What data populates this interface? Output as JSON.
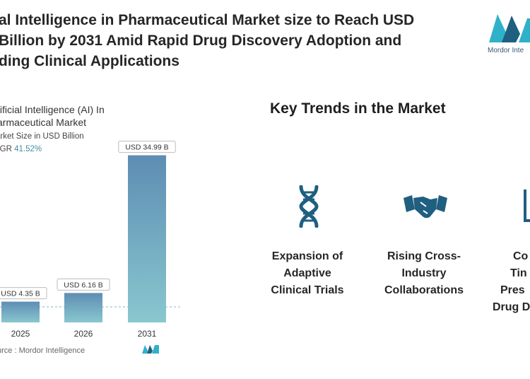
{
  "headline": {
    "lines": [
      "al Intelligence in Pharmaceutical Market size to Reach USD",
      "Billion by 2031 Amid Rapid Drug Discovery Adoption and",
      "ding Clinical Applications"
    ]
  },
  "logo": {
    "text": "Mordor Inte",
    "icon": "mordor-logo-icon"
  },
  "chart_data": {
    "type": "bar",
    "title_lines": [
      "tificial Intelligence (AI) In",
      "armaceutical Market"
    ],
    "subtitle": "arket Size in USD Billion",
    "cagr_label": "AGR",
    "cagr_value": "41.52%",
    "categories": [
      "2025",
      "2026",
      "2031"
    ],
    "values": [
      4.35,
      6.16,
      34.99
    ],
    "data_labels": [
      "USD 4.35 B",
      "USD 6.16 B",
      "USD 34.99 B"
    ],
    "ylim": [
      0,
      37
    ],
    "grid": false,
    "colors": {
      "bar_top": "#5e8db3",
      "bar_bottom": "#89c7cf",
      "dashed_line": "#7fb8c4"
    }
  },
  "source": "urce :  Mordor Intelligence",
  "trends": {
    "title": "Key Trends in the Market",
    "items": [
      {
        "icon": "dna-icon",
        "lines": [
          "Expansion of",
          "Adaptive",
          "Clinical Trials"
        ]
      },
      {
        "icon": "handshake-icon",
        "lines": [
          "Rising Cross-",
          "Industry",
          "Collaborations"
        ]
      },
      {
        "icon": "document-chart-icon",
        "lines": [
          "Co",
          "Tin",
          "Pres",
          "Drug D"
        ]
      }
    ],
    "colors": {
      "icon": "#1f5f80"
    }
  }
}
